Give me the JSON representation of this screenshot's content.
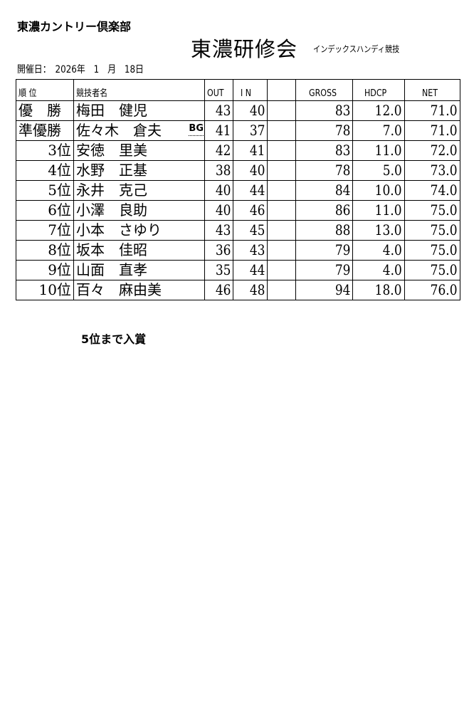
{
  "header": {
    "club": "東濃カントリー倶楽部",
    "title": "東濃研修会",
    "subtitle": "インデックスハンディ競技",
    "date": "開催日：　2026年　1　月　18日"
  },
  "columns": {
    "rank": "順 位",
    "name": "競技者名",
    "out": "OUT",
    "in": "I N",
    "blank": "",
    "gross": "GROSS",
    "hdcp": "HDCP",
    "net": "NET"
  },
  "rows": [
    {
      "rank": "優　勝",
      "name": "梅田　健児",
      "badge": "",
      "out": "43",
      "in": "40",
      "gross": "83",
      "hdcp": "12.0",
      "net": "71.0"
    },
    {
      "rank": "準優勝",
      "name": "佐々木　倉夫",
      "badge": "BG",
      "out": "41",
      "in": "37",
      "gross": "78",
      "hdcp": "7.0",
      "net": "71.0"
    },
    {
      "rank": "3位",
      "name": "安徳　里美",
      "badge": "",
      "out": "42",
      "in": "41",
      "gross": "83",
      "hdcp": "11.0",
      "net": "72.0"
    },
    {
      "rank": "4位",
      "name": "水野　正基",
      "badge": "",
      "out": "38",
      "in": "40",
      "gross": "78",
      "hdcp": "5.0",
      "net": "73.0"
    },
    {
      "rank": "5位",
      "name": "永井　克己",
      "badge": "",
      "out": "40",
      "in": "44",
      "gross": "84",
      "hdcp": "10.0",
      "net": "74.0"
    },
    {
      "rank": "6位",
      "name": "小澤　良助",
      "badge": "",
      "out": "40",
      "in": "46",
      "gross": "86",
      "hdcp": "11.0",
      "net": "75.0"
    },
    {
      "rank": "7位",
      "name": "小本　さゆり",
      "badge": "",
      "out": "43",
      "in": "45",
      "gross": "88",
      "hdcp": "13.0",
      "net": "75.0"
    },
    {
      "rank": "8位",
      "name": "坂本　佳昭",
      "badge": "",
      "out": "36",
      "in": "43",
      "gross": "79",
      "hdcp": "4.0",
      "net": "75.0"
    },
    {
      "rank": "9位",
      "name": "山面　直孝",
      "badge": "",
      "out": "35",
      "in": "44",
      "gross": "79",
      "hdcp": "4.0",
      "net": "75.0"
    },
    {
      "rank": "10位",
      "name": "百々　麻由美",
      "badge": "",
      "out": "46",
      "in": "48",
      "gross": "94",
      "hdcp": "18.0",
      "net": "76.0"
    }
  ],
  "note": "5位まで入賞"
}
